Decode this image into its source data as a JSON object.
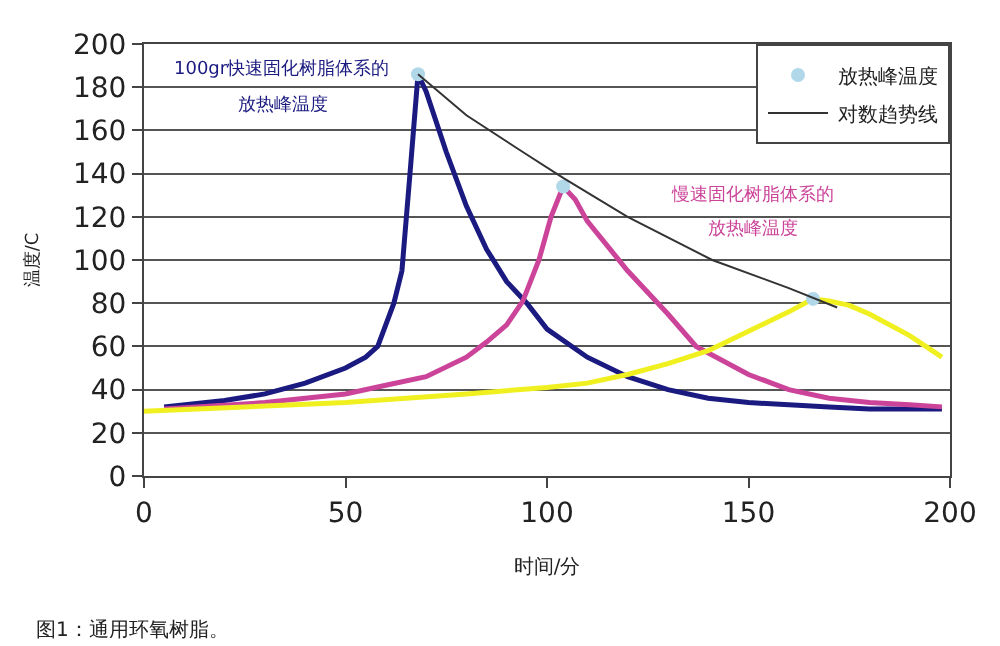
{
  "chart_data": {
    "type": "line",
    "xlabel": "时间/分",
    "ylabel": "温度/C",
    "xlim": [
      0,
      200
    ],
    "xticks": [
      0,
      50,
      100,
      150,
      200
    ],
    "ylim": [
      0,
      200
    ],
    "yticks": [
      0,
      20,
      40,
      60,
      80,
      100,
      120,
      140,
      160,
      180,
      200
    ],
    "grid": "y",
    "legend": "top right",
    "marker": "none",
    "line_style": "solid",
    "series": [
      {
        "color": "#1a1a80",
        "x": [
          5,
          20,
          30,
          40,
          50,
          55,
          58,
          62,
          64,
          66,
          68,
          70,
          75,
          80,
          85,
          90,
          95,
          100,
          110,
          120,
          125,
          130,
          140,
          150,
          160,
          170,
          180,
          190,
          198
        ],
        "values": [
          32,
          35,
          38,
          43,
          50,
          55,
          60,
          80,
          95,
          140,
          186,
          178,
          150,
          125,
          105,
          90,
          80,
          68,
          55,
          46,
          43,
          40,
          36,
          34,
          33,
          32,
          31,
          31,
          31
        ]
      },
      {
        "color": "#cc4499",
        "x": [
          5,
          30,
          50,
          60,
          70,
          80,
          85,
          90,
          94,
          98,
          101,
          104,
          107,
          110,
          120,
          130,
          137,
          150,
          160,
          170,
          180,
          190,
          198
        ],
        "values": [
          31,
          34,
          38,
          42,
          46,
          55,
          62,
          70,
          81,
          100,
          120,
          134,
          128,
          118,
          95,
          75,
          60,
          47,
          40,
          36,
          34,
          33,
          32
        ]
      },
      {
        "color": "#f0f020",
        "x": [
          0,
          50,
          80,
          100,
          110,
          120,
          130,
          140,
          150,
          160,
          166,
          170,
          175,
          180,
          190,
          198
        ],
        "values": [
          30,
          34,
          38,
          41,
          43,
          47,
          52,
          58,
          67,
          76,
          82,
          81,
          79,
          75,
          65,
          55
        ]
      },
      {
        "name": "放热峰温度",
        "type": "scatter",
        "marker": "circle",
        "color": "#b0d8e8",
        "x": [
          68,
          104,
          166
        ],
        "values": [
          186,
          134,
          82
        ]
      },
      {
        "name": "对数趋势线",
        "color": "#333333",
        "x": [
          68,
          80,
          94,
          104,
          120,
          141,
          160,
          172
        ],
        "values": [
          186,
          167,
          150,
          138,
          120,
          100,
          87,
          78
        ]
      }
    ],
    "annotations": [
      "100gr快速固化树脂体系的",
      "放热峰温度",
      "慢速固化树脂体系的",
      "放热峰温度",
      "图1：通用环氧树脂。"
    ]
  }
}
